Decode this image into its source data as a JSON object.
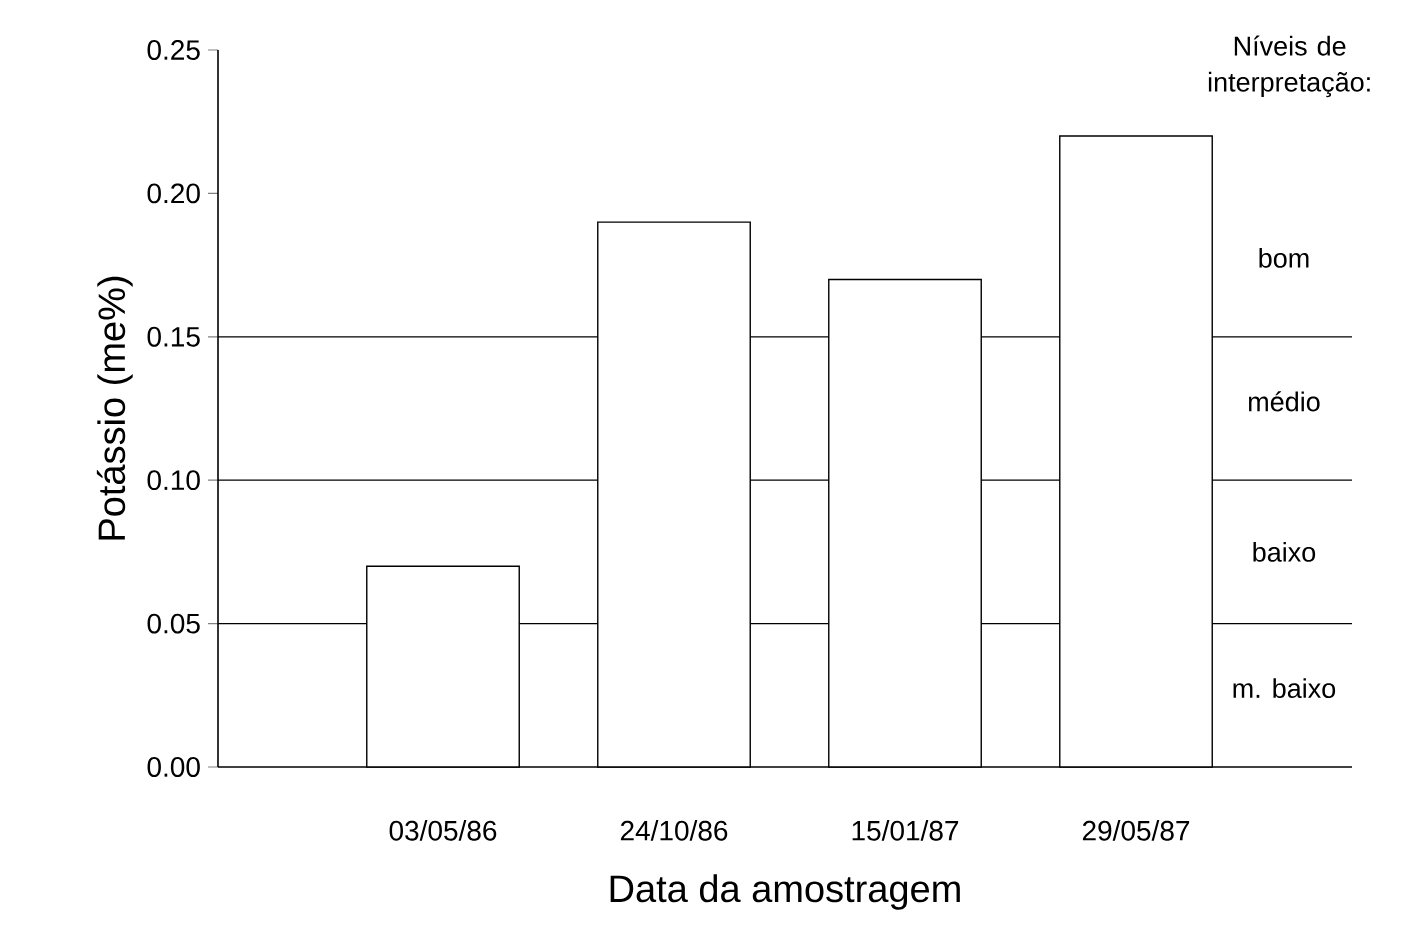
{
  "chart_data": {
    "type": "bar",
    "xlabel": "Data da amostragem",
    "ylabel": "Potássio (me%)",
    "categories": [
      "03/05/86",
      "24/10/86",
      "15/01/87",
      "29/05/87"
    ],
    "values": [
      0.07,
      0.19,
      0.17,
      0.22
    ],
    "color": "#000000",
    "ylim": [
      0,
      0.25
    ],
    "yticks": [
      {
        "value": 0,
        "label": "0.00"
      },
      {
        "value": 0.05,
        "label": "0.05"
      },
      {
        "value": 0.1,
        "label": "0.10"
      },
      {
        "value": 0.15,
        "label": "0.15"
      },
      {
        "value": 0.2,
        "label": "0.20"
      },
      {
        "value": 0.25,
        "label": "0.25"
      }
    ],
    "ref_lines": [
      {
        "axis": "y",
        "value": 0.05
      },
      {
        "axis": "y",
        "value": 0.1
      },
      {
        "axis": "y",
        "value": 0.15
      }
    ],
    "annotations": [
      "Níveis de interpretação:",
      "bom",
      "médio",
      "baixo",
      "m. baixo"
    ]
  }
}
